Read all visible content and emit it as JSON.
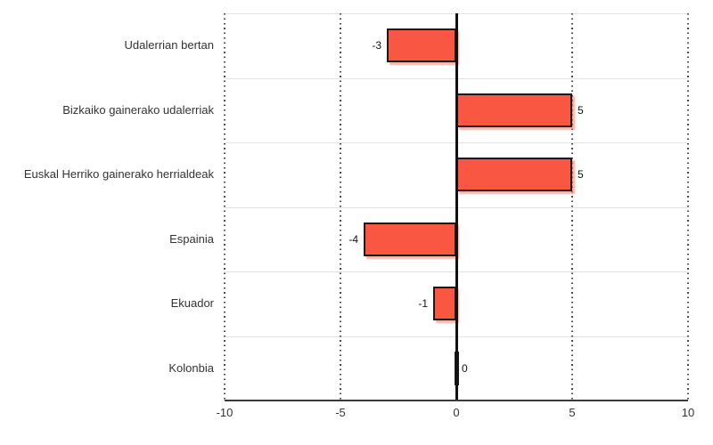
{
  "chart_data": {
    "type": "bar",
    "orientation": "horizontal",
    "title": "",
    "xlabel": "",
    "ylabel": "",
    "categories": [
      "Udalerrian bertan",
      "Bizkaiko gainerako udalerriak",
      "Euskal Herriko gainerako herrialdeak",
      "Espainia",
      "Ekuador",
      "Kolonbia"
    ],
    "values": [
      -3,
      5,
      5,
      -4,
      -1,
      0
    ],
    "value_labels": [
      "-3",
      "5",
      "5",
      "-4",
      "-1",
      "0"
    ],
    "xlim": [
      -10,
      10
    ],
    "x_ticks": [
      -10,
      -5,
      0,
      5,
      10
    ],
    "x_tick_labels": [
      "-10",
      "-5",
      "0",
      "5",
      "10"
    ],
    "legend": "none",
    "grid": {
      "vertical": "dotted",
      "horizontal": "solid-light"
    },
    "colors": {
      "background": "#FFFFFF",
      "bar_fill": "#FA5743",
      "bar_border": "#1A1A1A",
      "bar_shadow": "rgba(250,120,96,0.55)",
      "zero_line": "#111111",
      "axis_line": "#3A3A3A",
      "dotted_grid": "#4A4A4A",
      "row_separator": "#E2E2E2",
      "category_text": "#333333",
      "value_text": "#111111"
    }
  }
}
